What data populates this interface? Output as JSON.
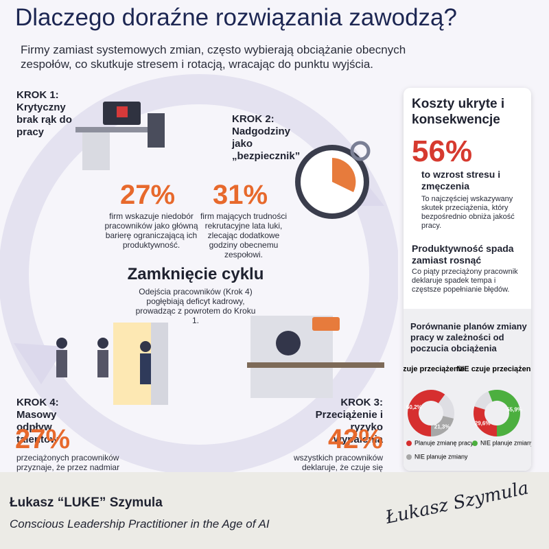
{
  "header": {
    "title": "Dlaczego doraźne rozwiązania zawodzą?",
    "subtitle": "Firmy zamiast systemowych zmian, często wybierają obciążanie obecnych zespołów, co skutkuje stresem i rotacją, wracając do punktu wyjścia."
  },
  "steps": [
    {
      "label": "KROK 1:",
      "title": "Krytyczny brak rąk do pracy",
      "value": "27%",
      "text": "firm wskazuje niedobór pracowników jako główną barierę ograniczającą ich produktywność."
    },
    {
      "label": "KROK 2:",
      "title": "Nadgodziny jako „bezpiecznik”",
      "value": "31%",
      "text": "firm mających trudności rekrutacyjne lata luki, zlecając dodatkowe godziny obecnemu zespołowi."
    },
    {
      "label": "KROK 3:",
      "title": "Przeciążenie i ryzyko wypalenia",
      "value": "42%",
      "text": "wszystkich pracowników deklaruje, że czuje się nadmiernie obciążona"
    },
    {
      "label": "KROK 4:",
      "title": "Masowy odpływ talentów",
      "value": "27%",
      "text": "przeciążonych pracowników przyznaje, że przez nadmiar zadań"
    }
  ],
  "center": {
    "title": "Zamknięcie cyklu",
    "text": "Odejścia pracowników (Krok 4) pogłębiają deficyt kadrowy, prowadząc z powrotem do Kroku 1."
  },
  "sidebar": {
    "title": "Koszty ukryte i konsekwencje",
    "stat": "56%",
    "stat_label": "to wzrost stresu i zmęczenia",
    "stat_text": "To najczęściej wskazywany skutek przeciążenia, który bezpośrednio obniża jakość pracy.",
    "section_title": "Produktywność spada zamiast rosnąć",
    "section_text": "Co piąty przeciążony pracownik deklaruje spadek tempa i częstsze popełnianie błędów."
  },
  "chart_data": {
    "type": "donut",
    "title": "Porównanie planów zmiany pracy w zależności od poczucia obciążenia",
    "series": [
      {
        "name": "Czuje przeciążenie",
        "values": [
          60.2,
          21.3
        ],
        "value_labels": [
          "60,2%",
          "21,3%"
        ],
        "colors": [
          "#d62f2f",
          "#a7a7a7"
        ],
        "categories": [
          "Planuje zmianę pracy",
          "NIE planuje zmiany"
        ]
      },
      {
        "name": "NIE czuje przeciążenia",
        "values": [
          29.6,
          55.9
        ],
        "value_labels": [
          "29,6%",
          "55,9%"
        ],
        "colors": [
          "#d62f2f",
          "#4caf3f"
        ],
        "categories": [
          null,
          "NIE planuje zmiany"
        ]
      }
    ]
  },
  "footer": {
    "name": "Łukasz “LUKE” Szymula",
    "role": "Conscious Leadership Practitioner in the Age of AI",
    "signature": "Łukasz Szymula"
  }
}
